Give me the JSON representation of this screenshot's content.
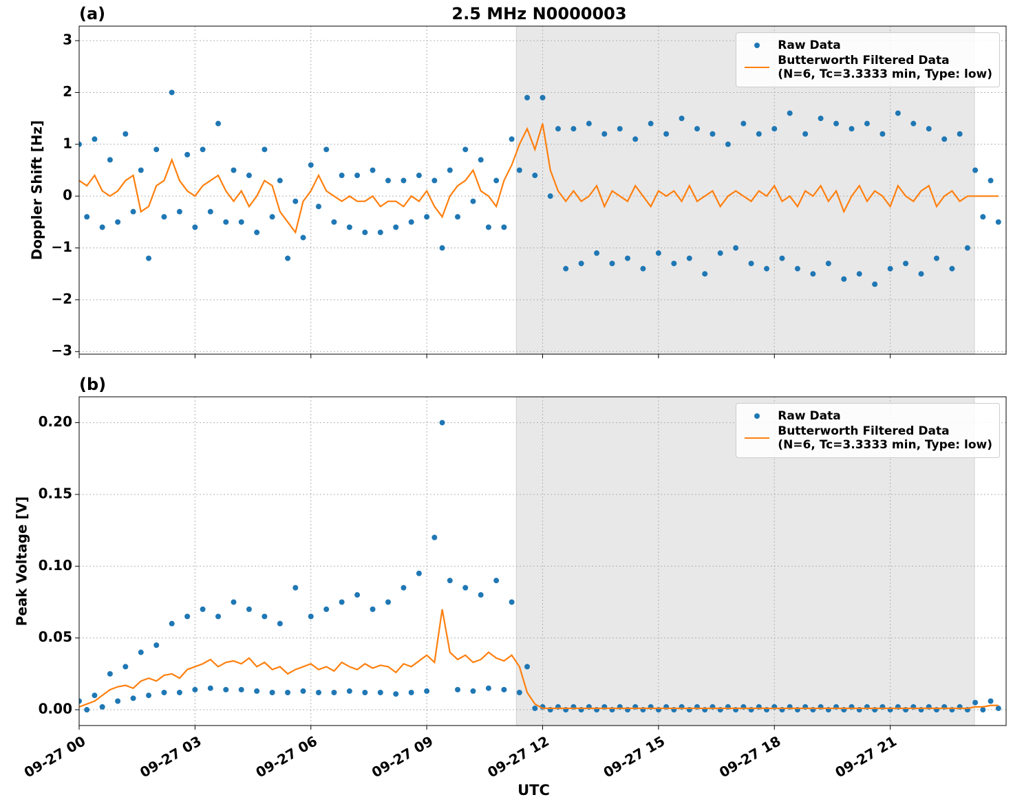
{
  "chart_data": [
    {
      "type": "scatter",
      "panel_label": "(a)",
      "title": "2.5 MHz N0000003",
      "ylabel": "Doppler Shift [Hz]",
      "xlim": [
        0,
        24
      ],
      "xticks": [
        0,
        3,
        6,
        9,
        12,
        15,
        18,
        21
      ],
      "ylim": [
        -3.05,
        3.28
      ],
      "yticks": [
        {
          "value": -3,
          "label": "−3"
        },
        {
          "value": -2,
          "label": "−2"
        },
        {
          "value": -1,
          "label": "−1"
        },
        0,
        1,
        2,
        3
      ],
      "grid": true,
      "shade": [
        11.32,
        23.18
      ],
      "legend": "upper right",
      "x": [
        0,
        0.2,
        0.4,
        0.6,
        0.8,
        1,
        1.2,
        1.4,
        1.6,
        1.8,
        2,
        2.2,
        2.4,
        2.6,
        2.8,
        3,
        3.2,
        3.4,
        3.6,
        3.8,
        4,
        4.2,
        4.4,
        4.6,
        4.8,
        5,
        5.2,
        5.4,
        5.6,
        5.8,
        6,
        6.2,
        6.4,
        6.6,
        6.8,
        7,
        7.2,
        7.4,
        7.6,
        7.8,
        8,
        8.2,
        8.4,
        8.6,
        8.8,
        9,
        9.2,
        9.4,
        9.6,
        9.8,
        10,
        10.2,
        10.4,
        10.6,
        10.8,
        11,
        11.2,
        11.4,
        11.6,
        11.8,
        12,
        12.2,
        12.4,
        12.6,
        12.8,
        13,
        13.2,
        13.4,
        13.6,
        13.8,
        14,
        14.2,
        14.4,
        14.6,
        14.8,
        15,
        15.2,
        15.4,
        15.6,
        15.8,
        16,
        16.2,
        16.4,
        16.6,
        16.8,
        17,
        17.2,
        17.4,
        17.6,
        17.8,
        18,
        18.2,
        18.4,
        18.6,
        18.8,
        19,
        19.2,
        19.4,
        19.6,
        19.8,
        20,
        20.2,
        20.4,
        20.6,
        20.8,
        21,
        21.2,
        21.4,
        21.6,
        21.8,
        22,
        22.2,
        22.4,
        22.6,
        22.8,
        23,
        23.2,
        23.4,
        23.6,
        23.8
      ],
      "series": [
        {
          "name": "Raw Data",
          "kind": "scatter",
          "color": "#1f77b4",
          "values": [
            1.0,
            -0.4,
            1.1,
            -0.6,
            0.7,
            -0.5,
            1.2,
            -0.3,
            0.5,
            -1.2,
            0.9,
            -0.4,
            2.0,
            -0.3,
            0.8,
            -0.6,
            0.9,
            -0.3,
            1.4,
            -0.5,
            0.5,
            -0.5,
            0.4,
            -0.7,
            0.9,
            -0.4,
            0.3,
            -1.2,
            -0.1,
            -0.8,
            0.6,
            -0.2,
            0.9,
            -0.5,
            0.4,
            -0.6,
            0.4,
            -0.7,
            0.5,
            -0.7,
            0.3,
            -0.6,
            0.3,
            -0.5,
            0.4,
            -0.4,
            0.3,
            -1.0,
            0.5,
            -0.4,
            0.9,
            -0.1,
            0.7,
            -0.6,
            0.3,
            -0.6,
            1.1,
            0.5,
            1.9,
            0.4,
            1.9,
            0.0,
            1.3,
            -1.4,
            1.3,
            -1.3,
            1.4,
            -1.1,
            1.2,
            -1.3,
            1.3,
            -1.2,
            1.1,
            -1.4,
            1.4,
            -1.1,
            1.2,
            -1.3,
            1.5,
            -1.2,
            1.3,
            -1.5,
            1.2,
            -1.1,
            1.0,
            -1.0,
            1.4,
            -1.3,
            1.2,
            -1.4,
            1.3,
            -1.2,
            1.6,
            -1.4,
            1.2,
            -1.5,
            1.5,
            -1.3,
            1.4,
            -1.6,
            1.3,
            -1.5,
            1.4,
            -1.7,
            1.2,
            -1.4,
            1.6,
            -1.3,
            1.4,
            -1.5,
            1.3,
            -1.2,
            1.1,
            -1.4,
            1.2,
            -1.0,
            0.5,
            -0.4,
            0.3,
            -0.5
          ]
        },
        {
          "name": "Butterworth Filtered Data\n(N=6, Tc=3.3333 min, Type: low)",
          "kind": "line",
          "color": "#ff7f0e",
          "values": [
            0.3,
            0.2,
            0.4,
            0.1,
            0.0,
            0.1,
            0.3,
            0.4,
            -0.3,
            -0.2,
            0.2,
            0.3,
            0.7,
            0.3,
            0.1,
            0.0,
            0.2,
            0.3,
            0.4,
            0.1,
            -0.1,
            0.1,
            -0.2,
            0.0,
            0.3,
            0.2,
            -0.3,
            -0.5,
            -0.7,
            -0.1,
            0.1,
            0.4,
            0.1,
            0.0,
            -0.1,
            0.0,
            -0.1,
            -0.1,
            0.0,
            -0.2,
            -0.1,
            -0.1,
            -0.2,
            0.0,
            -0.1,
            0.1,
            -0.2,
            -0.4,
            0.0,
            0.2,
            0.3,
            0.5,
            0.1,
            0.0,
            -0.2,
            0.3,
            0.6,
            1.0,
            1.3,
            0.9,
            1.4,
            0.5,
            0.1,
            -0.1,
            0.1,
            -0.1,
            0.0,
            0.2,
            -0.2,
            0.1,
            0.0,
            -0.1,
            0.2,
            0.0,
            -0.2,
            0.1,
            0.0,
            0.1,
            -0.1,
            0.2,
            -0.1,
            0.0,
            0.1,
            -0.2,
            0.0,
            0.1,
            0.0,
            -0.1,
            0.1,
            0.0,
            0.2,
            -0.1,
            0.0,
            -0.2,
            0.1,
            0.0,
            0.2,
            -0.1,
            0.1,
            -0.3,
            0.0,
            0.2,
            -0.1,
            0.1,
            0.0,
            -0.2,
            0.2,
            0.0,
            -0.1,
            0.1,
            0.2,
            -0.2,
            0.0,
            0.1,
            -0.1,
            0.0,
            0.0,
            0.0,
            0.0,
            0.0
          ]
        }
      ]
    },
    {
      "type": "scatter",
      "panel_label": "(b)",
      "ylabel": "Peak Voltage [V]",
      "xlabel": "UTC",
      "xlim": [
        0,
        24
      ],
      "xticks": [
        {
          "value": 0,
          "label": "09-27 00"
        },
        {
          "value": 3,
          "label": "09-27 03"
        },
        {
          "value": 6,
          "label": "09-27 06"
        },
        {
          "value": 9,
          "label": "09-27 09"
        },
        {
          "value": 12,
          "label": "09-27 12"
        },
        {
          "value": 15,
          "label": "09-27 15"
        },
        {
          "value": 18,
          "label": "09-27 18"
        },
        {
          "value": 21,
          "label": "09-27 21"
        }
      ],
      "ylim": [
        -0.011,
        0.218
      ],
      "yticks": [
        {
          "value": 0,
          "label": "0.00"
        },
        {
          "value": 0.05,
          "label": "0.05"
        },
        {
          "value": 0.1,
          "label": "0.10"
        },
        {
          "value": 0.15,
          "label": "0.15"
        },
        {
          "value": 0.2,
          "label": "0.20"
        }
      ],
      "grid": true,
      "shade": [
        11.32,
        23.18
      ],
      "legend": "upper right",
      "x": [
        0,
        0.2,
        0.4,
        0.6,
        0.8,
        1,
        1.2,
        1.4,
        1.6,
        1.8,
        2,
        2.2,
        2.4,
        2.6,
        2.8,
        3,
        3.2,
        3.4,
        3.6,
        3.8,
        4,
        4.2,
        4.4,
        4.6,
        4.8,
        5,
        5.2,
        5.4,
        5.6,
        5.8,
        6,
        6.2,
        6.4,
        6.6,
        6.8,
        7,
        7.2,
        7.4,
        7.6,
        7.8,
        8,
        8.2,
        8.4,
        8.6,
        8.8,
        9,
        9.2,
        9.4,
        9.6,
        9.8,
        10,
        10.2,
        10.4,
        10.6,
        10.8,
        11,
        11.2,
        11.4,
        11.6,
        11.8,
        12,
        12.2,
        12.4,
        12.6,
        12.8,
        13,
        13.2,
        13.4,
        13.6,
        13.8,
        14,
        14.2,
        14.4,
        14.6,
        14.8,
        15,
        15.2,
        15.4,
        15.6,
        15.8,
        16,
        16.2,
        16.4,
        16.6,
        16.8,
        17,
        17.2,
        17.4,
        17.6,
        17.8,
        18,
        18.2,
        18.4,
        18.6,
        18.8,
        19,
        19.2,
        19.4,
        19.6,
        19.8,
        20,
        20.2,
        20.4,
        20.6,
        20.8,
        21,
        21.2,
        21.4,
        21.6,
        21.8,
        22,
        22.2,
        22.4,
        22.6,
        22.8,
        23,
        23.2,
        23.4,
        23.6,
        23.8
      ],
      "series": [
        {
          "name": "Raw Data",
          "kind": "scatter",
          "color": "#1f77b4",
          "values": [
            0.006,
            0.0,
            0.01,
            0.002,
            0.025,
            0.006,
            0.03,
            0.008,
            0.04,
            0.01,
            0.045,
            0.012,
            0.06,
            0.012,
            0.065,
            0.014,
            0.07,
            0.015,
            0.065,
            0.014,
            0.075,
            0.014,
            0.07,
            0.013,
            0.065,
            0.012,
            0.06,
            0.012,
            0.085,
            0.013,
            0.065,
            0.012,
            0.07,
            0.012,
            0.075,
            0.013,
            0.08,
            0.012,
            0.07,
            0.012,
            0.075,
            0.011,
            0.085,
            0.012,
            0.095,
            0.013,
            0.12,
            0.2,
            0.09,
            0.014,
            0.085,
            0.013,
            0.08,
            0.015,
            0.09,
            0.014,
            0.075,
            0.012,
            0.03,
            0.001,
            0.002,
            0.0,
            0.002,
            0.0,
            0.002,
            0.0,
            0.002,
            0.0,
            0.002,
            0.0,
            0.002,
            0.0,
            0.002,
            0.0,
            0.002,
            0.0,
            0.002,
            0.0,
            0.002,
            0.0,
            0.002,
            0.0,
            0.002,
            0.0,
            0.002,
            0.0,
            0.002,
            0.0,
            0.002,
            0.0,
            0.002,
            0.0,
            0.002,
            0.0,
            0.002,
            0.0,
            0.002,
            0.0,
            0.002,
            0.0,
            0.002,
            0.0,
            0.002,
            0.0,
            0.002,
            0.0,
            0.002,
            0.0,
            0.002,
            0.0,
            0.002,
            0.0,
            0.002,
            0.0,
            0.002,
            0.0,
            0.005,
            0.0,
            0.006,
            0.001
          ]
        },
        {
          "name": "Butterworth Filtered Data\n(N=6, Tc=3.3333 min, Type: low)",
          "kind": "line",
          "color": "#ff7f0e",
          "values": [
            0.002,
            0.004,
            0.006,
            0.01,
            0.014,
            0.016,
            0.017,
            0.015,
            0.02,
            0.022,
            0.02,
            0.024,
            0.025,
            0.022,
            0.028,
            0.03,
            0.032,
            0.035,
            0.03,
            0.033,
            0.034,
            0.032,
            0.036,
            0.03,
            0.033,
            0.028,
            0.03,
            0.025,
            0.028,
            0.03,
            0.032,
            0.028,
            0.03,
            0.027,
            0.033,
            0.03,
            0.028,
            0.032,
            0.029,
            0.031,
            0.03,
            0.026,
            0.032,
            0.03,
            0.034,
            0.038,
            0.033,
            0.07,
            0.04,
            0.035,
            0.038,
            0.033,
            0.035,
            0.04,
            0.036,
            0.034,
            0.038,
            0.03,
            0.012,
            0.004,
            0.001,
            0.001,
            0.001,
            0.001,
            0.001,
            0.001,
            0.001,
            0.001,
            0.001,
            0.001,
            0.001,
            0.001,
            0.001,
            0.001,
            0.001,
            0.001,
            0.001,
            0.001,
            0.001,
            0.001,
            0.001,
            0.001,
            0.001,
            0.001,
            0.001,
            0.001,
            0.001,
            0.001,
            0.001,
            0.001,
            0.001,
            0.001,
            0.001,
            0.001,
            0.001,
            0.001,
            0.001,
            0.001,
            0.001,
            0.001,
            0.001,
            0.001,
            0.001,
            0.001,
            0.001,
            0.001,
            0.001,
            0.001,
            0.001,
            0.001,
            0.001,
            0.001,
            0.001,
            0.001,
            0.001,
            0.001,
            0.002,
            0.002,
            0.003,
            0.003
          ]
        }
      ]
    }
  ]
}
